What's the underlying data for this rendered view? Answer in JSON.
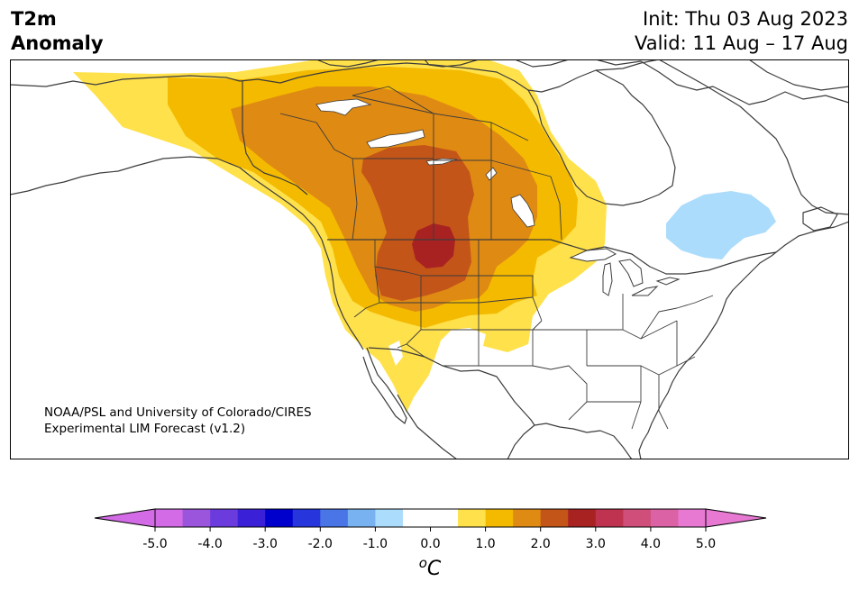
{
  "title": {
    "left_line1": "T2m",
    "left_line2": "Anomaly",
    "init": "Init: Thu 03 Aug 2023",
    "valid": "Valid: 11 Aug – 17 Aug"
  },
  "credit": {
    "line1": "NOAA/PSL and University of Colorado/CIRES",
    "line2": "Experimental LIM Forecast (v1.2)"
  },
  "map": {
    "variable": "2-meter temperature anomaly",
    "region": "North America",
    "features": [
      "coastlines",
      "country-borders",
      "state-province-borders",
      "great-lakes"
    ]
  },
  "colorbar": {
    "unit": "oC",
    "tick_labels": [
      "-5.0",
      "-4.0",
      "-3.0",
      "-2.0",
      "-1.0",
      "0.0",
      "1.0",
      "2.0",
      "3.0",
      "4.0",
      "5.0"
    ],
    "bins": [
      {
        "lo": -5.0,
        "hi": -4.5,
        "color": "#d36be6"
      },
      {
        "lo": -4.5,
        "hi": -4.0,
        "color": "#9b55dc"
      },
      {
        "lo": -4.0,
        "hi": -3.5,
        "color": "#6b3bdd"
      },
      {
        "lo": -3.5,
        "hi": -3.0,
        "color": "#3a20d6"
      },
      {
        "lo": -3.0,
        "hi": -2.5,
        "color": "#0000cc"
      },
      {
        "lo": -2.5,
        "hi": -2.0,
        "color": "#2635dc"
      },
      {
        "lo": -2.0,
        "hi": -1.5,
        "color": "#4a75e6"
      },
      {
        "lo": -1.5,
        "hi": -1.0,
        "color": "#78b2f0"
      },
      {
        "lo": -1.0,
        "hi": -0.5,
        "color": "#acdcfb"
      },
      {
        "lo": -0.5,
        "hi": 0.5,
        "color": "#ffffff"
      },
      {
        "lo": 0.5,
        "hi": 1.0,
        "color": "#ffe14b"
      },
      {
        "lo": 1.0,
        "hi": 1.5,
        "color": "#f4ba00"
      },
      {
        "lo": 1.5,
        "hi": 2.0,
        "color": "#df8a13"
      },
      {
        "lo": 2.0,
        "hi": 2.5,
        "color": "#c45518"
      },
      {
        "lo": 2.5,
        "hi": 3.0,
        "color": "#a92222"
      },
      {
        "lo": 3.0,
        "hi": 3.5,
        "color": "#bf3350"
      },
      {
        "lo": 3.5,
        "hi": 4.0,
        "color": "#cf4e7a"
      },
      {
        "lo": 4.0,
        "hi": 4.5,
        "color": "#da62a5"
      },
      {
        "lo": 4.5,
        "hi": 5.0,
        "color": "#e779d3"
      }
    ],
    "extend_low_color": "#d36be6",
    "extend_high_color": "#e779d3"
  }
}
